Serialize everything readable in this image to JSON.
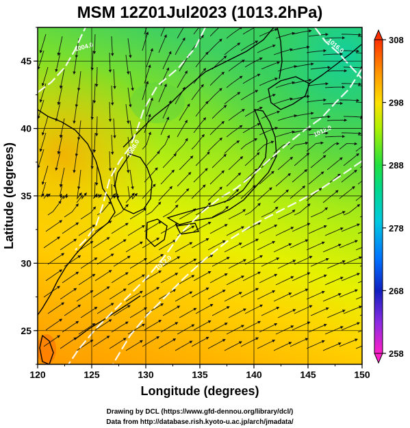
{
  "title": "MSM 12Z01Jul2023 (1013.2hPa)",
  "axes": {
    "xlabel": "Longitude (degrees)",
    "ylabel": "Latitude  (degrees)",
    "x_ticks": [
      "120",
      "125",
      "130",
      "135",
      "140",
      "145",
      "150"
    ],
    "y_ticks": [
      "25",
      "30",
      "35",
      "40",
      "45"
    ],
    "xlim": [
      120,
      150
    ],
    "ylim": [
      22.5,
      47.5
    ]
  },
  "colorbar": {
    "ticks": [
      "308",
      "298",
      "288",
      "278",
      "268",
      "258"
    ],
    "range": [
      258,
      308
    ],
    "colors": [
      "#ff20c8",
      "#8a2be2",
      "#0030ff",
      "#00a0ff",
      "#00e0d0",
      "#20e060",
      "#aaf000",
      "#ffe000",
      "#ff9000",
      "#ff3000"
    ]
  },
  "contour_labels": {
    "label_1": "1004.0",
    "label_2": "1008.0",
    "label_3": "1012.0",
    "label_4": "1012.0",
    "label_5": "1016.0"
  },
  "credits": {
    "line1": "Drawing by DCL (https://www.gfd-dennou.org/library/dcl/)",
    "line2": "Data from http://database.rish.kyoto-u.ac.jp/arch/jmadata/"
  }
}
